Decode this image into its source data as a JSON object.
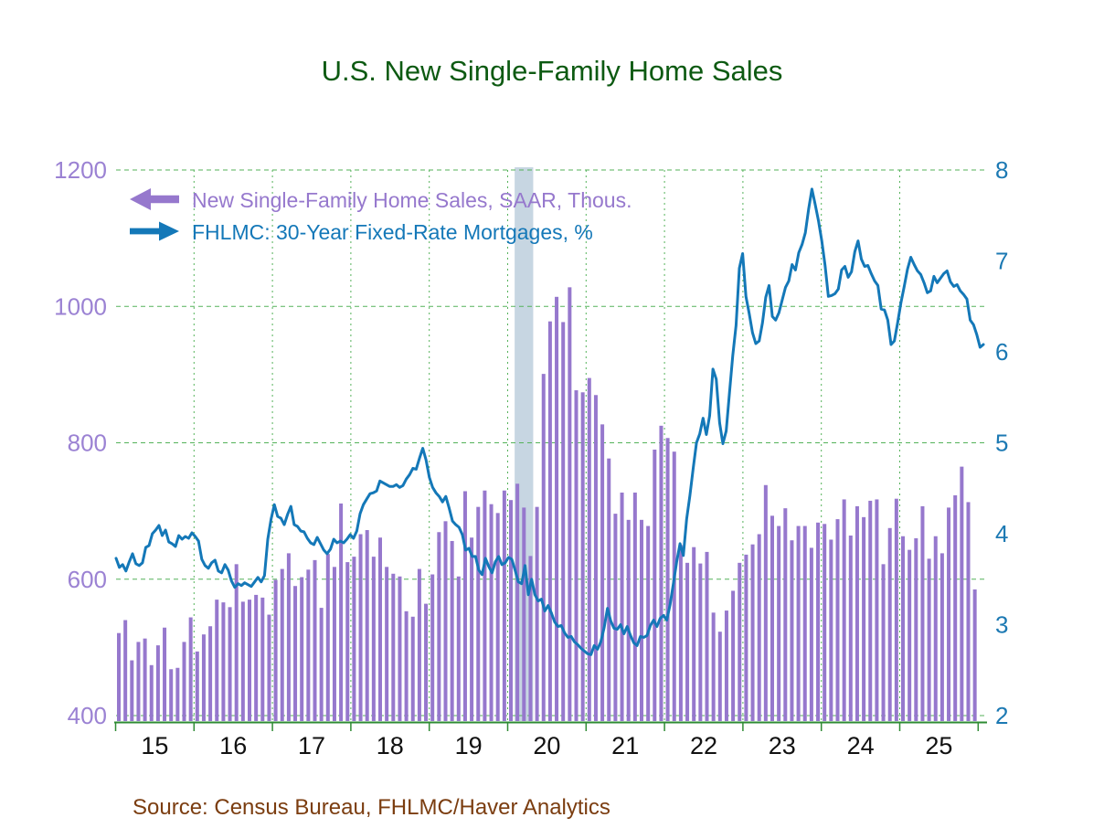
{
  "title": {
    "text": "U.S. New Single-Family Home Sales",
    "color": "#0d5a12"
  },
  "source": {
    "text": "Source: Census Bureau, FHLMC/Haver Analytics",
    "color": "#7b3d10"
  },
  "legend": {
    "items": [
      {
        "label": "New Single-Family Home Sales, SAAR, Thous.",
        "color": "#9678cd",
        "arrow": "left",
        "axis": "left"
      },
      {
        "label": "FHLMC: 30-Year Fixed-Rate Mortgages, %",
        "color": "#1478b8",
        "arrow": "right",
        "axis": "right"
      }
    ]
  },
  "axes": {
    "left": {
      "tick_labels": [
        "400",
        "600",
        "800",
        "1000",
        "1200"
      ],
      "tick_values": [
        400,
        600,
        800,
        1000,
        1200
      ],
      "range": [
        400,
        1200
      ],
      "color": "#9b82d3"
    },
    "right": {
      "tick_labels": [
        "2",
        "3",
        "4",
        "5",
        "6",
        "7",
        "8"
      ],
      "tick_values": [
        2,
        3,
        4,
        5,
        6,
        7,
        8
      ],
      "range": [
        2,
        8
      ],
      "color": "#1c79b3"
    },
    "x": {
      "labels": [
        "15",
        "16",
        "17",
        "18",
        "19",
        "20",
        "21",
        "22",
        "23",
        "24",
        "25"
      ],
      "color": "#111111"
    }
  },
  "styles": {
    "bar_color": "#9678cd",
    "line_color": "#1478b8",
    "grid_color": "#55b25a",
    "axis_color": "#2e8b33",
    "band_color": "#c7d6e2",
    "background": "#ffffff"
  },
  "recession_band": {
    "start": "2020-02",
    "end": "2020-04"
  },
  "chart_data": {
    "type": "combo",
    "title": "U.S. New Single-Family Home Sales",
    "x_range": [
      "2015-01",
      "2025-12"
    ],
    "grid": true,
    "legend_position": "top-left",
    "ylim_left": [
      400,
      1200
    ],
    "ylim_right": [
      2,
      8
    ],
    "series": [
      {
        "name": "New Single-Family Home Sales, SAAR, Thous.",
        "type": "bar",
        "axis": "left",
        "start": "2015-01",
        "frequency": "monthly",
        "values": [
          521,
          540,
          481,
          508,
          513,
          474,
          503,
          529,
          468,
          470,
          508,
          544,
          494,
          519,
          531,
          570,
          566,
          559,
          622,
          567,
          570,
          577,
          573,
          548,
          599,
          615,
          638,
          590,
          603,
          614,
          628,
          558,
          637,
          618,
          711,
          625,
          633,
          666,
          672,
          633,
          661,
          618,
          608,
          604,
          553,
          545,
          615,
          564,
          607,
          669,
          685,
          656,
          604,
          729,
          661,
          706,
          730,
          710,
          697,
          730,
          716,
          740,
          705,
          634,
          706,
          901,
          978,
          1014,
          977,
          1028,
          877,
          874,
          895,
          870,
          827,
          777,
          696,
          727,
          687,
          727,
          687,
          678,
          790,
          825,
          807,
          787,
          650,
          624,
          647,
          623,
          640,
          551,
          523,
          554,
          583,
          624,
          636,
          651,
          666,
          738,
          693,
          678,
          704,
          657,
          678,
          678,
          646,
          683,
          681,
          658,
          688,
          717,
          664,
          707,
          691,
          715,
          717,
          622,
          675,
          718,
          663,
          643,
          660,
          707,
          630,
          663,
          638,
          705,
          723,
          765,
          713,
          585
        ]
      },
      {
        "name": "FHLMC: 30-Year Fixed-Rate Mortgages, %",
        "type": "line",
        "axis": "right",
        "start": "2015-01",
        "frequency": "semimonthly",
        "values": [
          3.73,
          3.63,
          3.66,
          3.59,
          3.69,
          3.78,
          3.67,
          3.65,
          3.68,
          3.85,
          3.87,
          4.0,
          4.04,
          4.09,
          3.98,
          4.04,
          3.91,
          3.89,
          3.86,
          3.98,
          3.94,
          3.97,
          3.95,
          4.01,
          3.97,
          3.92,
          3.72,
          3.65,
          3.62,
          3.68,
          3.71,
          3.59,
          3.57,
          3.66,
          3.6,
          3.48,
          3.41,
          3.45,
          3.43,
          3.46,
          3.44,
          3.42,
          3.47,
          3.52,
          3.47,
          3.54,
          3.94,
          4.16,
          4.32,
          4.19,
          4.17,
          4.1,
          4.21,
          4.3,
          4.1,
          4.08,
          4.03,
          4.02,
          3.95,
          3.9,
          3.88,
          3.96,
          3.89,
          3.82,
          3.78,
          3.83,
          3.94,
          3.9,
          3.92,
          3.9,
          3.94,
          3.99,
          3.95,
          4.03,
          4.22,
          4.32,
          4.38,
          4.44,
          4.45,
          4.47,
          4.58,
          4.56,
          4.54,
          4.52,
          4.52,
          4.54,
          4.51,
          4.53,
          4.6,
          4.65,
          4.72,
          4.71,
          4.83,
          4.94,
          4.81,
          4.62,
          4.51,
          4.45,
          4.41,
          4.35,
          4.41,
          4.28,
          4.14,
          4.1,
          4.07,
          3.99,
          3.82,
          3.84,
          3.75,
          3.75,
          3.6,
          3.55,
          3.73,
          3.64,
          3.57,
          3.69,
          3.75,
          3.66,
          3.68,
          3.74,
          3.72,
          3.6,
          3.47,
          3.45,
          3.65,
          3.33,
          3.5,
          3.33,
          3.26,
          3.28,
          3.15,
          3.21,
          3.13,
          3.03,
          2.98,
          2.99,
          2.91,
          2.86,
          2.87,
          2.81,
          2.78,
          2.74,
          2.71,
          2.68,
          2.67,
          2.77,
          2.73,
          2.81,
          2.97,
          3.18,
          3.04,
          2.96,
          2.95,
          3.0,
          2.9,
          2.98,
          2.88,
          2.8,
          2.77,
          2.87,
          2.86,
          2.88,
          2.99,
          3.05,
          2.98,
          3.07,
          3.1,
          3.05,
          3.22,
          3.45,
          3.69,
          3.89,
          3.76,
          4.16,
          4.42,
          4.72,
          5.0,
          5.1,
          5.27,
          5.09,
          5.3,
          5.81,
          5.7,
          5.22,
          4.99,
          5.13,
          5.55,
          5.96,
          6.29,
          6.92,
          7.08,
          6.61,
          6.42,
          6.21,
          6.09,
          6.12,
          6.32,
          6.6,
          6.73,
          6.39,
          6.35,
          6.43,
          6.57,
          6.71,
          6.78,
          6.96,
          6.9,
          7.09,
          7.18,
          7.31,
          7.57,
          7.79,
          7.62,
          7.44,
          7.22,
          6.95,
          6.61,
          6.62,
          6.64,
          6.69,
          6.9,
          6.94,
          6.82,
          6.88,
          7.1,
          7.22,
          7.02,
          6.94,
          6.95,
          6.86,
          6.78,
          6.73,
          6.47,
          6.46,
          6.35,
          6.08,
          6.12,
          6.32,
          6.54,
          6.72,
          6.91,
          7.04,
          6.96,
          6.89,
          6.85,
          6.76,
          6.65,
          6.67,
          6.83,
          6.76,
          6.81,
          6.86,
          6.89,
          6.77,
          6.72,
          6.74,
          6.67,
          6.63,
          6.58,
          6.35,
          6.3,
          6.19,
          6.05,
          6.08
        ]
      }
    ]
  }
}
